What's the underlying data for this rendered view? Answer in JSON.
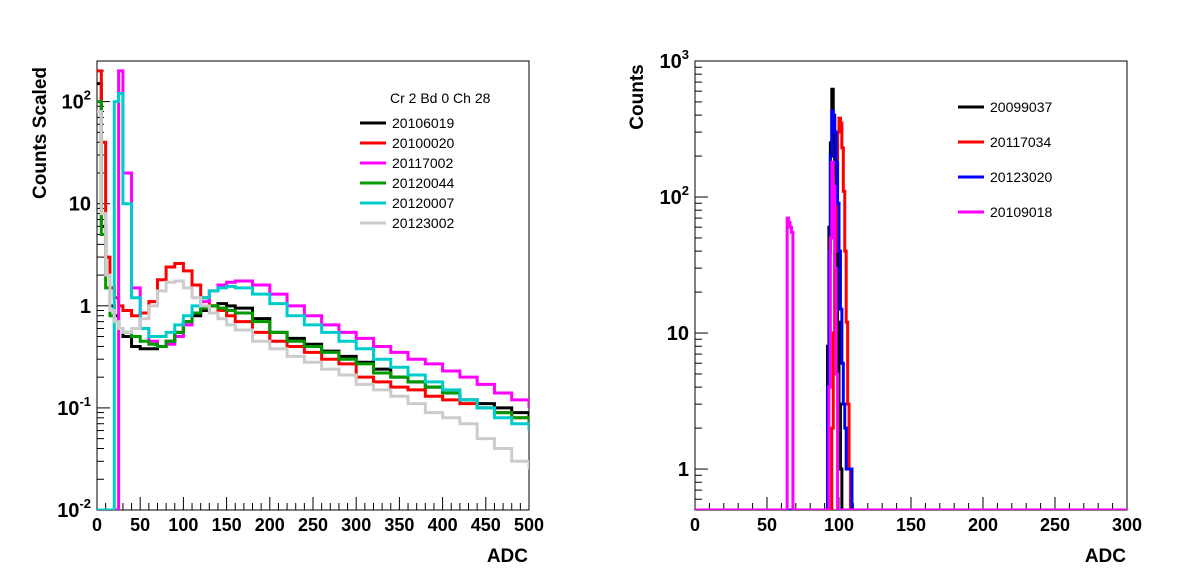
{
  "chart_data": [
    {
      "type": "line",
      "title": "",
      "xlabel": "ADC",
      "ylabel": "Counts Scaled",
      "xlim": [
        0,
        500
      ],
      "ylim": [
        0.01,
        250
      ],
      "yscale": "log",
      "grid": false,
      "legend_title": "Cr 2 Bd 0 Ch 28",
      "legend_position": "top-right",
      "x_ticks": [
        "0",
        "50",
        "100",
        "150",
        "200",
        "250",
        "300",
        "350",
        "400",
        "450",
        "500"
      ],
      "y_ticks": [
        {
          "base": "10",
          "exp": "-2"
        },
        {
          "base": "10",
          "exp": "-1"
        },
        {
          "base": "1",
          "exp": ""
        },
        {
          "base": "10",
          "exp": ""
        },
        {
          "base": "10",
          "exp": "2"
        }
      ],
      "series": [
        {
          "name": "20106019",
          "color": "#000000",
          "x": [
            0,
            5,
            10,
            15,
            20,
            25,
            30,
            40,
            50,
            60,
            70,
            80,
            90,
            100,
            110,
            120,
            130,
            140,
            150,
            160,
            180,
            200,
            220,
            240,
            260,
            280,
            300,
            320,
            340,
            360,
            380,
            400,
            420,
            440,
            460,
            480,
            500
          ],
          "y": [
            150,
            6,
            2,
            1.0,
            0.8,
            0.6,
            0.5,
            0.4,
            0.38,
            0.38,
            0.4,
            0.45,
            0.55,
            0.7,
            0.8,
            0.9,
            1.0,
            1.05,
            1.0,
            0.95,
            0.75,
            0.55,
            0.48,
            0.42,
            0.36,
            0.32,
            0.28,
            0.24,
            0.2,
            0.18,
            0.16,
            0.14,
            0.12,
            0.11,
            0.1,
            0.09,
            0.08
          ]
        },
        {
          "name": "20100020",
          "color": "#ff0000",
          "x": [
            0,
            5,
            10,
            15,
            20,
            25,
            30,
            40,
            50,
            60,
            70,
            80,
            90,
            100,
            110,
            120,
            130,
            140,
            150,
            160,
            180,
            200,
            220,
            240,
            260,
            280,
            300,
            320,
            340,
            360,
            380,
            400,
            420,
            440,
            460,
            480,
            500
          ],
          "y": [
            200,
            40,
            3,
            1.5,
            1.2,
            1.0,
            0.9,
            0.8,
            0.85,
            1.1,
            1.8,
            2.4,
            2.6,
            2.2,
            1.6,
            1.2,
            1.0,
            0.9,
            0.8,
            0.7,
            0.55,
            0.45,
            0.4,
            0.35,
            0.3,
            0.27,
            0.2,
            0.18,
            0.16,
            0.15,
            0.13,
            0.12,
            0.11,
            0.1,
            0.09,
            0.08,
            0.07
          ]
        },
        {
          "name": "20117002",
          "color": "#ff00ff",
          "x": [
            0,
            5,
            10,
            15,
            20,
            25,
            30,
            40,
            50,
            60,
            70,
            80,
            90,
            100,
            110,
            120,
            130,
            140,
            150,
            160,
            180,
            200,
            220,
            240,
            260,
            280,
            300,
            320,
            340,
            360,
            380,
            400,
            420,
            440,
            460,
            480,
            500
          ],
          "y": [
            0.01,
            0.01,
            0.01,
            0.01,
            0.01,
            200,
            20,
            1.5,
            0.6,
            0.45,
            0.4,
            0.42,
            0.5,
            0.65,
            0.85,
            1.1,
            1.4,
            1.6,
            1.7,
            1.75,
            1.6,
            1.3,
            1.0,
            0.8,
            0.65,
            0.55,
            0.48,
            0.4,
            0.35,
            0.3,
            0.27,
            0.23,
            0.2,
            0.17,
            0.14,
            0.12,
            0.1
          ]
        },
        {
          "name": "20120044",
          "color": "#009900",
          "x": [
            0,
            5,
            10,
            15,
            20,
            25,
            30,
            40,
            50,
            60,
            70,
            80,
            90,
            100,
            110,
            120,
            130,
            140,
            150,
            160,
            180,
            200,
            220,
            240,
            260,
            280,
            300,
            320,
            340,
            360,
            380,
            400,
            420,
            440,
            460,
            480,
            500
          ],
          "y": [
            100,
            5,
            1.5,
            0.8,
            0.7,
            0.6,
            0.55,
            0.5,
            0.45,
            0.42,
            0.4,
            0.45,
            0.55,
            0.7,
            0.85,
            0.95,
            1.0,
            0.95,
            0.9,
            0.85,
            0.7,
            0.55,
            0.45,
            0.4,
            0.35,
            0.3,
            0.27,
            0.22,
            0.2,
            0.18,
            0.16,
            0.14,
            0.12,
            0.1,
            0.09,
            0.08,
            0.07
          ]
        },
        {
          "name": "20120007",
          "color": "#00cccc",
          "x": [
            0,
            5,
            10,
            15,
            20,
            25,
            30,
            40,
            50,
            60,
            70,
            80,
            90,
            100,
            110,
            120,
            130,
            140,
            150,
            160,
            180,
            200,
            220,
            240,
            260,
            280,
            300,
            320,
            340,
            360,
            380,
            400,
            420,
            440,
            460,
            480,
            500
          ],
          "y": [
            0.01,
            0.01,
            0.01,
            0.01,
            100,
            120,
            10,
            1.2,
            0.6,
            0.5,
            0.5,
            0.55,
            0.65,
            0.8,
            1.0,
            1.2,
            1.4,
            1.5,
            1.55,
            1.5,
            1.3,
            1.05,
            0.8,
            0.65,
            0.55,
            0.45,
            0.38,
            0.3,
            0.25,
            0.21,
            0.18,
            0.15,
            0.12,
            0.1,
            0.08,
            0.07,
            0.06
          ]
        },
        {
          "name": "20123002",
          "color": "#cccccc",
          "x": [
            0,
            5,
            10,
            15,
            20,
            25,
            30,
            40,
            50,
            60,
            70,
            80,
            90,
            100,
            110,
            120,
            130,
            140,
            150,
            160,
            180,
            200,
            220,
            240,
            260,
            280,
            300,
            320,
            340,
            360,
            380,
            400,
            420,
            440,
            460,
            480,
            500
          ],
          "y": [
            80,
            8,
            2,
            0.9,
            0.7,
            0.6,
            0.55,
            0.6,
            0.75,
            1.0,
            1.4,
            1.7,
            1.75,
            1.5,
            1.2,
            1.0,
            0.85,
            0.75,
            0.65,
            0.58,
            0.45,
            0.38,
            0.32,
            0.28,
            0.24,
            0.21,
            0.17,
            0.15,
            0.13,
            0.11,
            0.09,
            0.08,
            0.07,
            0.05,
            0.04,
            0.03,
            0.025
          ]
        }
      ]
    },
    {
      "type": "line",
      "title": "",
      "xlabel": "ADC",
      "ylabel": "Counts",
      "xlim": [
        0,
        300
      ],
      "ylim": [
        0.5,
        1000
      ],
      "yscale": "log",
      "grid": false,
      "legend_position": "top-right",
      "x_ticks": [
        "0",
        "50",
        "100",
        "150",
        "200",
        "250",
        "300"
      ],
      "y_ticks": [
        {
          "base": "1",
          "exp": ""
        },
        {
          "base": "10",
          "exp": ""
        },
        {
          "base": "10",
          "exp": "2"
        },
        {
          "base": "10",
          "exp": "3"
        }
      ],
      "series": [
        {
          "name": "20099037",
          "color": "#000000",
          "x": [
            0,
            90,
            91,
            92,
            93,
            94,
            95,
            96,
            97,
            98,
            99,
            100,
            101,
            102,
            103,
            300
          ],
          "y": [
            0.5,
            0.5,
            0.5,
            8,
            60,
            250,
            620,
            380,
            150,
            50,
            12,
            3,
            1,
            0.5,
            0.5,
            0.5
          ]
        },
        {
          "name": "20117034",
          "color": "#ff0000",
          "x": [
            0,
            94,
            95,
            96,
            97,
            98,
            99,
            100,
            101,
            102,
            103,
            104,
            105,
            106,
            107,
            108,
            300
          ],
          "y": [
            0.5,
            0.5,
            2,
            10,
            40,
            120,
            300,
            380,
            350,
            230,
            110,
            40,
            12,
            3,
            1,
            0.5,
            0.5
          ]
        },
        {
          "name": "20123020",
          "color": "#0000ff",
          "x": [
            0,
            91,
            92,
            93,
            94,
            95,
            96,
            97,
            98,
            99,
            100,
            101,
            102,
            103,
            104,
            105,
            106,
            107,
            108,
            109,
            300
          ],
          "y": [
            0.5,
            0.5,
            4,
            40,
            200,
            430,
            400,
            300,
            180,
            90,
            40,
            15,
            6,
            3,
            2,
            1,
            1,
            1,
            1,
            0.5,
            0.5
          ]
        },
        {
          "name": "20109018",
          "color": "#ff00ff",
          "x": [
            0,
            63,
            64,
            65,
            66,
            67,
            68,
            69,
            92,
            93,
            94,
            95,
            96,
            97,
            98,
            99,
            300
          ],
          "y": [
            0.5,
            0.5,
            70,
            65,
            60,
            55,
            0.5,
            0.5,
            0.5,
            4,
            50,
            180,
            120,
            30,
            5,
            0.5,
            0.5
          ]
        }
      ]
    }
  ]
}
